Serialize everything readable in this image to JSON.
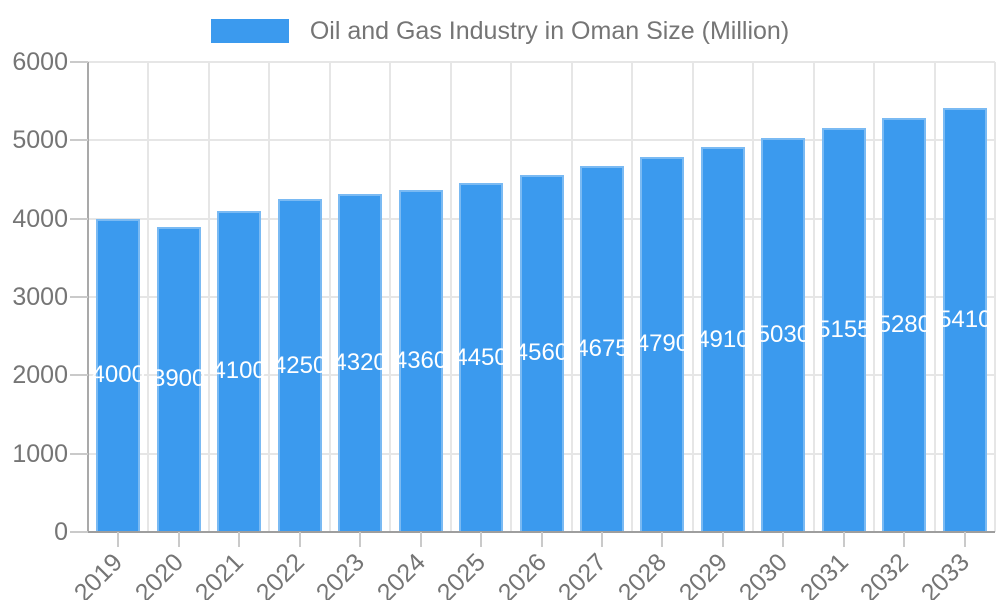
{
  "legend": {
    "label": "Oil and Gas Industry in Oman Size (Million)"
  },
  "chart_data": {
    "type": "bar",
    "title": "Oil and Gas Industry in Oman Size (Million)",
    "categories": [
      "2019",
      "2020",
      "2021",
      "2022",
      "2023",
      "2024",
      "2025",
      "2026",
      "2027",
      "2028",
      "2029",
      "2030",
      "2031",
      "2032",
      "2033"
    ],
    "values": [
      4000,
      3900,
      4100,
      4250,
      4320,
      4360,
      4450,
      4560,
      4675,
      4790,
      4910,
      5030,
      5155,
      5280,
      5410
    ],
    "xlabel": "",
    "ylabel": "",
    "ylim": [
      0,
      6000
    ],
    "yticks": [
      0,
      1000,
      2000,
      3000,
      4000,
      5000,
      6000
    ],
    "grid": true,
    "legend_position": "top",
    "bar_color": "#3b9aee",
    "value_label_color": "#ffffff",
    "axis_text_color": "#757575",
    "gridline_color": "#e6e6e6",
    "baseline_color": "#9e9e9e"
  }
}
